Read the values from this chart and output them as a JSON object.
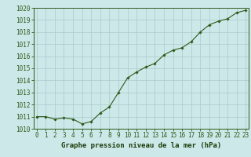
{
  "x": [
    0,
    1,
    2,
    3,
    4,
    5,
    6,
    7,
    8,
    9,
    10,
    11,
    12,
    13,
    14,
    15,
    16,
    17,
    18,
    19,
    20,
    21,
    22,
    23
  ],
  "y": [
    1011.0,
    1011.0,
    1010.8,
    1010.9,
    1010.8,
    1010.4,
    1010.6,
    1011.3,
    1011.8,
    1013.0,
    1014.2,
    1014.7,
    1015.1,
    1015.4,
    1016.1,
    1016.5,
    1016.7,
    1017.2,
    1018.0,
    1018.6,
    1018.9,
    1019.1,
    1019.6,
    1019.8
  ],
  "ylim": [
    1010,
    1020
  ],
  "yticks": [
    1010,
    1011,
    1012,
    1013,
    1014,
    1015,
    1016,
    1017,
    1018,
    1019,
    1020
  ],
  "xticks": [
    0,
    1,
    2,
    3,
    4,
    5,
    6,
    7,
    8,
    9,
    10,
    11,
    12,
    13,
    14,
    15,
    16,
    17,
    18,
    19,
    20,
    21,
    22,
    23
  ],
  "xlabel": "Graphe pression niveau de la mer (hPa)",
  "line_color": "#2d5a1b",
  "marker": "D",
  "marker_size": 1.8,
  "bg_color": "#cce8e8",
  "grid_color": "#aacaca",
  "xlabel_color": "#1a3d0a",
  "xlabel_fontsize": 6.5,
  "tick_fontsize": 5.5
}
